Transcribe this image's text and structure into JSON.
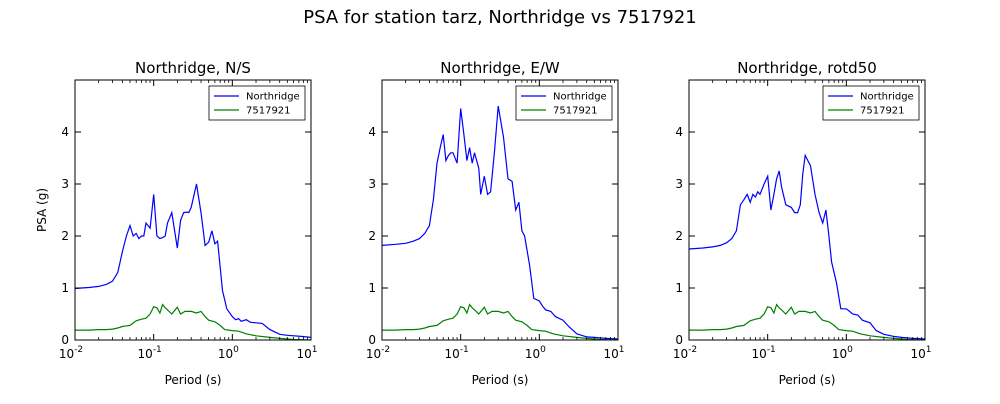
{
  "figure": {
    "title": "PSA for station tarz, Northridge vs 7517921"
  },
  "chart_data": [
    {
      "type": "line",
      "title": "Northridge, N/S",
      "xlabel": "Period (s)",
      "ylabel": "PSA (g)",
      "xscale": "log",
      "xlim": [
        0.01,
        10
      ],
      "ylim": [
        0,
        5
      ],
      "xticks": [
        0.01,
        0.1,
        1,
        10
      ],
      "xtick_labels": [
        "10-2",
        "10-1",
        "100",
        "101"
      ],
      "yticks": [
        0,
        1,
        2,
        3,
        4
      ],
      "grid": false,
      "legend": "top-right",
      "series": [
        {
          "name": "Northridge",
          "color": "#0000ff",
          "x": [
            0.01,
            0.012,
            0.015,
            0.02,
            0.025,
            0.03,
            0.035,
            0.04,
            0.045,
            0.05,
            0.055,
            0.06,
            0.065,
            0.07,
            0.075,
            0.08,
            0.09,
            0.1,
            0.11,
            0.12,
            0.13,
            0.14,
            0.15,
            0.17,
            0.2,
            0.22,
            0.24,
            0.26,
            0.28,
            0.3,
            0.35,
            0.4,
            0.45,
            0.5,
            0.55,
            0.6,
            0.65,
            0.75,
            0.85,
            1.0,
            1.1,
            1.2,
            1.3,
            1.5,
            1.7,
            2.0,
            2.4,
            3.0,
            4.0,
            5.0,
            7.5,
            10.0
          ],
          "y": [
            0.99,
            1.0,
            1.01,
            1.03,
            1.07,
            1.13,
            1.3,
            1.7,
            2.0,
            2.2,
            2.0,
            2.05,
            1.95,
            2.0,
            2.0,
            2.25,
            2.15,
            2.8,
            2.0,
            1.95,
            1.97,
            2.0,
            2.25,
            2.45,
            1.77,
            2.3,
            2.45,
            2.46,
            2.45,
            2.55,
            3.0,
            2.45,
            1.82,
            1.88,
            2.1,
            1.85,
            1.9,
            0.95,
            0.6,
            0.45,
            0.39,
            0.41,
            0.36,
            0.39,
            0.34,
            0.33,
            0.32,
            0.2,
            0.11,
            0.09,
            0.07,
            0.05
          ]
        },
        {
          "name": "7517921",
          "color": "#008000",
          "x": [
            0.01,
            0.015,
            0.02,
            0.025,
            0.03,
            0.035,
            0.04,
            0.05,
            0.06,
            0.07,
            0.08,
            0.09,
            0.1,
            0.11,
            0.12,
            0.13,
            0.14,
            0.15,
            0.17,
            0.2,
            0.22,
            0.25,
            0.3,
            0.35,
            0.4,
            0.45,
            0.5,
            0.6,
            0.7,
            0.8,
            1.0,
            1.2,
            1.5,
            2.0,
            3.0,
            4.0,
            6.0,
            10.0
          ],
          "y": [
            0.19,
            0.19,
            0.2,
            0.2,
            0.21,
            0.23,
            0.26,
            0.28,
            0.37,
            0.4,
            0.42,
            0.5,
            0.64,
            0.62,
            0.52,
            0.68,
            0.62,
            0.58,
            0.5,
            0.63,
            0.5,
            0.55,
            0.55,
            0.52,
            0.55,
            0.45,
            0.38,
            0.35,
            0.28,
            0.2,
            0.18,
            0.17,
            0.12,
            0.08,
            0.05,
            0.03,
            0.01,
            0.0
          ]
        }
      ]
    },
    {
      "type": "line",
      "title": "Northridge, E/W",
      "xlabel": "Period (s)",
      "ylabel": "",
      "xscale": "log",
      "xlim": [
        0.01,
        10
      ],
      "ylim": [
        0,
        5
      ],
      "xticks": [
        0.01,
        0.1,
        1,
        10
      ],
      "xtick_labels": [
        "10-2",
        "10-1",
        "100",
        "101"
      ],
      "yticks": [
        0,
        1,
        2,
        3,
        4
      ],
      "grid": false,
      "legend": "top-right",
      "series": [
        {
          "name": "Northridge",
          "color": "#0000ff",
          "x": [
            0.01,
            0.015,
            0.02,
            0.025,
            0.03,
            0.035,
            0.04,
            0.045,
            0.05,
            0.055,
            0.06,
            0.065,
            0.07,
            0.075,
            0.08,
            0.09,
            0.1,
            0.11,
            0.12,
            0.13,
            0.14,
            0.15,
            0.17,
            0.18,
            0.2,
            0.22,
            0.24,
            0.27,
            0.3,
            0.35,
            0.4,
            0.45,
            0.5,
            0.55,
            0.6,
            0.65,
            0.75,
            0.85,
            1.0,
            1.1,
            1.2,
            1.4,
            1.6,
            2.0,
            2.4,
            3.0,
            4.0,
            5.0,
            7.0,
            10.0
          ],
          "y": [
            1.82,
            1.84,
            1.86,
            1.9,
            1.95,
            2.05,
            2.2,
            2.7,
            3.4,
            3.7,
            3.95,
            3.45,
            3.55,
            3.6,
            3.6,
            3.4,
            4.45,
            3.95,
            3.45,
            3.7,
            3.4,
            3.6,
            3.3,
            2.8,
            3.15,
            2.8,
            2.85,
            3.65,
            4.5,
            3.9,
            3.1,
            3.05,
            2.5,
            2.65,
            2.1,
            2.0,
            1.45,
            0.8,
            0.75,
            0.65,
            0.58,
            0.55,
            0.45,
            0.38,
            0.25,
            0.12,
            0.06,
            0.05,
            0.03,
            0.02
          ]
        },
        {
          "name": "7517921",
          "color": "#008000",
          "x": [
            0.01,
            0.015,
            0.02,
            0.025,
            0.03,
            0.035,
            0.04,
            0.05,
            0.06,
            0.07,
            0.08,
            0.09,
            0.1,
            0.11,
            0.12,
            0.13,
            0.14,
            0.15,
            0.17,
            0.2,
            0.22,
            0.25,
            0.3,
            0.35,
            0.4,
            0.45,
            0.5,
            0.6,
            0.7,
            0.8,
            1.0,
            1.2,
            1.5,
            2.0,
            3.0,
            4.0,
            6.0,
            10.0
          ],
          "y": [
            0.19,
            0.19,
            0.2,
            0.2,
            0.21,
            0.23,
            0.26,
            0.28,
            0.37,
            0.4,
            0.42,
            0.5,
            0.64,
            0.62,
            0.52,
            0.68,
            0.62,
            0.58,
            0.5,
            0.63,
            0.5,
            0.55,
            0.55,
            0.52,
            0.55,
            0.45,
            0.38,
            0.35,
            0.28,
            0.2,
            0.18,
            0.17,
            0.12,
            0.08,
            0.05,
            0.03,
            0.01,
            0.0
          ]
        }
      ]
    },
    {
      "type": "line",
      "title": "Northridge, rotd50",
      "xlabel": "Period (s)",
      "ylabel": "",
      "xscale": "log",
      "xlim": [
        0.01,
        10
      ],
      "ylim": [
        0,
        5
      ],
      "xticks": [
        0.01,
        0.1,
        1,
        10
      ],
      "xtick_labels": [
        "10-2",
        "10-1",
        "100",
        "101"
      ],
      "yticks": [
        0,
        1,
        2,
        3,
        4
      ],
      "grid": false,
      "legend": "top-right",
      "series": [
        {
          "name": "Northridge",
          "color": "#0000ff",
          "x": [
            0.01,
            0.015,
            0.02,
            0.025,
            0.03,
            0.035,
            0.04,
            0.045,
            0.05,
            0.055,
            0.06,
            0.065,
            0.07,
            0.075,
            0.08,
            0.09,
            0.1,
            0.11,
            0.12,
            0.13,
            0.14,
            0.15,
            0.17,
            0.2,
            0.22,
            0.24,
            0.26,
            0.28,
            0.3,
            0.35,
            0.4,
            0.45,
            0.5,
            0.55,
            0.6,
            0.65,
            0.75,
            0.85,
            1.0,
            1.1,
            1.2,
            1.4,
            1.6,
            2.0,
            2.4,
            3.0,
            4.0,
            5.0,
            7.0,
            10.0
          ],
          "y": [
            1.75,
            1.77,
            1.79,
            1.82,
            1.87,
            1.95,
            2.1,
            2.6,
            2.7,
            2.8,
            2.65,
            2.8,
            2.75,
            2.85,
            2.8,
            3.0,
            3.15,
            2.5,
            2.8,
            3.1,
            3.25,
            2.95,
            2.6,
            2.55,
            2.45,
            2.45,
            2.6,
            3.2,
            3.55,
            3.35,
            2.8,
            2.45,
            2.25,
            2.5,
            2.0,
            1.5,
            1.1,
            0.6,
            0.6,
            0.55,
            0.5,
            0.48,
            0.38,
            0.33,
            0.18,
            0.11,
            0.07,
            0.05,
            0.03,
            0.02
          ]
        },
        {
          "name": "7517921",
          "color": "#008000",
          "x": [
            0.01,
            0.015,
            0.02,
            0.025,
            0.03,
            0.035,
            0.04,
            0.05,
            0.06,
            0.07,
            0.08,
            0.09,
            0.1,
            0.11,
            0.12,
            0.13,
            0.14,
            0.15,
            0.17,
            0.2,
            0.22,
            0.25,
            0.3,
            0.35,
            0.4,
            0.45,
            0.5,
            0.6,
            0.7,
            0.8,
            1.0,
            1.2,
            1.5,
            2.0,
            3.0,
            4.0,
            6.0,
            10.0
          ],
          "y": [
            0.19,
            0.19,
            0.2,
            0.2,
            0.21,
            0.23,
            0.26,
            0.28,
            0.37,
            0.4,
            0.42,
            0.5,
            0.64,
            0.62,
            0.52,
            0.68,
            0.62,
            0.58,
            0.5,
            0.63,
            0.5,
            0.55,
            0.55,
            0.52,
            0.55,
            0.45,
            0.38,
            0.35,
            0.28,
            0.2,
            0.18,
            0.17,
            0.12,
            0.08,
            0.05,
            0.03,
            0.01,
            0.0
          ]
        }
      ]
    }
  ]
}
